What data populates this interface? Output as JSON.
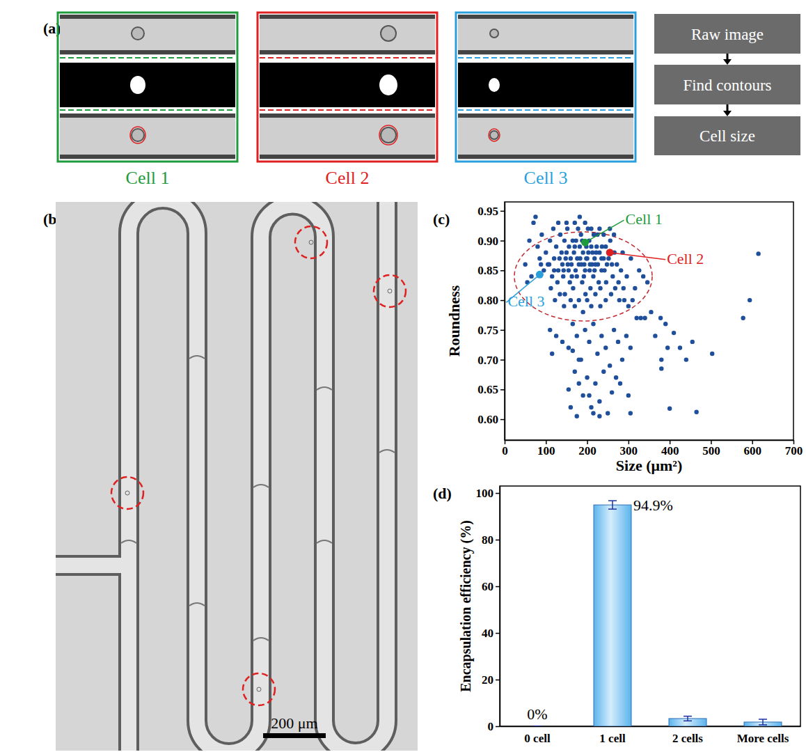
{
  "chart_data": [
    {
      "type": "scatter",
      "x_label": "Size (μm²)",
      "y_label": "Roundness",
      "color": "#1f4e9a",
      "xlim": [
        0,
        700
      ],
      "ylim": [
        0.565,
        0.965
      ],
      "xticks": [
        0,
        100,
        200,
        300,
        400,
        500,
        600,
        700
      ],
      "yticks": [
        {
          "value": 0.6,
          "label": "0.60"
        },
        0.65,
        {
          "value": 0.7,
          "label": "0.70"
        },
        0.75,
        {
          "value": 0.8,
          "label": "0.80"
        },
        0.85,
        {
          "value": 0.9,
          "label": "0.90"
        },
        0.95
      ],
      "x": [
        150,
        160,
        170,
        180,
        190,
        200,
        210,
        220,
        230,
        240,
        155,
        165,
        175,
        185,
        195,
        205,
        215,
        225,
        235,
        245,
        140,
        145,
        158,
        168,
        178,
        188,
        198,
        208,
        218,
        228,
        120,
        125,
        130,
        135,
        142,
        148,
        152,
        162,
        172,
        182,
        192,
        202,
        212,
        222,
        232,
        242,
        252,
        262,
        272,
        282,
        100,
        105,
        110,
        115,
        118,
        128,
        138,
        146,
        156,
        166,
        176,
        186,
        196,
        206,
        216,
        226,
        236,
        246,
        256,
        266,
        60,
        70,
        75,
        80,
        85,
        90,
        95,
        65,
        55,
        50,
        276,
        286,
        296,
        306,
        316,
        326,
        336,
        346,
        290,
        300,
        170,
        182,
        195,
        210,
        230,
        150,
        130,
        240,
        255,
        265,
        160,
        170,
        180,
        190,
        200,
        210,
        220,
        232,
        245,
        258,
        112,
        122,
        134,
        144,
        268,
        278,
        288,
        310,
        320,
        340,
        110,
        115,
        125,
        140,
        155,
        165,
        175,
        185,
        195,
        205,
        215,
        225,
        235,
        245,
        255,
        265,
        275,
        285,
        295,
        305,
        155,
        170,
        180,
        190,
        200,
        210,
        220,
        230,
        240,
        250,
        160,
        175,
        205,
        215,
        230,
        260,
        280,
        300,
        305,
        270,
        330,
        355,
        365,
        378,
        380,
        395,
        410,
        425,
        440,
        455,
        380,
        390,
        400,
        465,
        503,
        578,
        594,
        615,
        180,
        165,
        198,
        203,
        188,
        173,
        213,
        223,
        183,
        193,
        207,
        218,
        235,
        248,
        260,
        163,
        153,
        143,
        133,
        120,
        108,
        88
      ],
      "values": [
        0.88,
        0.87,
        0.89,
        0.86,
        0.88,
        0.87,
        0.89,
        0.86,
        0.88,
        0.87,
        0.85,
        0.9,
        0.84,
        0.91,
        0.85,
        0.9,
        0.84,
        0.91,
        0.85,
        0.89,
        0.86,
        0.9,
        0.83,
        0.88,
        0.92,
        0.83,
        0.89,
        0.82,
        0.87,
        0.83,
        0.87,
        0.89,
        0.85,
        0.91,
        0.84,
        0.87,
        0.92,
        0.86,
        0.85,
        0.89,
        0.84,
        0.92,
        0.86,
        0.88,
        0.82,
        0.85,
        0.87,
        0.84,
        0.86,
        0.85,
        0.88,
        0.86,
        0.9,
        0.84,
        0.92,
        0.83,
        0.88,
        0.81,
        0.89,
        0.82,
        0.87,
        0.86,
        0.81,
        0.85,
        0.91,
        0.86,
        0.89,
        0.83,
        0.9,
        0.88,
        0.9,
        0.93,
        0.94,
        0.89,
        0.87,
        0.91,
        0.85,
        0.84,
        0.83,
        0.86,
        0.83,
        0.88,
        0.84,
        0.87,
        0.82,
        0.85,
        0.84,
        0.83,
        0.8,
        0.79,
        0.93,
        0.94,
        0.93,
        0.92,
        0.92,
        0.93,
        0.93,
        0.91,
        0.92,
        0.91,
        0.8,
        0.79,
        0.8,
        0.78,
        0.8,
        0.79,
        0.81,
        0.79,
        0.8,
        0.81,
        0.82,
        0.8,
        0.81,
        0.79,
        0.82,
        0.8,
        0.82,
        0.8,
        0.77,
        0.77,
        0.75,
        0.71,
        0.74,
        0.73,
        0.72,
        0.76,
        0.74,
        0.7,
        0.75,
        0.73,
        0.76,
        0.71,
        0.74,
        0.72,
        0.69,
        0.75,
        0.73,
        0.7,
        0.74,
        0.72,
        0.65,
        0.68,
        0.66,
        0.64,
        0.67,
        0.62,
        0.66,
        0.63,
        0.68,
        0.61,
        0.62,
        0.605,
        0.64,
        0.61,
        0.605,
        0.645,
        0.66,
        0.64,
        0.61,
        0.67,
        0.77,
        0.78,
        0.74,
        0.77,
        0.7,
        0.72,
        0.745,
        0.72,
        0.7,
        0.73,
        0.685,
        0.76,
        0.618,
        0.612,
        0.71,
        0.77,
        0.8,
        0.878,
        0.7,
        0.715,
        0.87,
        0.88,
        0.9,
        0.9,
        0.88,
        0.89,
        0.87,
        0.86,
        0.86,
        0.85,
        0.87,
        0.86,
        0.86,
        0.84,
        0.86,
        0.85,
        0.87,
        0.85,
        0.86,
        0.86
      ],
      "annotations": [
        {
          "text": "Cell 1",
          "x": 195,
          "y": 0.897,
          "color": "#1e9b3c"
        },
        {
          "text": "Cell 2",
          "x": 255,
          "y": 0.88,
          "color": "#e02020"
        },
        {
          "text": "Cell 3",
          "x": 85,
          "y": 0.843,
          "color": "#2a9fdc"
        }
      ]
    },
    {
      "type": "bar",
      "y_label": "Encapsulation efficiency (%)",
      "categories": [
        "0 cell",
        "1 cell",
        "2 cells",
        "More cells"
      ],
      "values": [
        0,
        94.9,
        3.3,
        1.8
      ],
      "errors": [
        0,
        1.8,
        1.0,
        1.2
      ],
      "value_labels": [
        "0%",
        "94.9%",
        null,
        null
      ],
      "data_labels": true,
      "color": "#5ab4ec",
      "ylim": [
        0,
        103
      ],
      "yticks": [
        0,
        20,
        40,
        60,
        80,
        100
      ]
    }
  ],
  "figure": {
    "panel_labels": [
      "(a)",
      "(b)",
      "(c)",
      "(d)"
    ],
    "cells": [
      {
        "label": "Cell 1",
        "color": "#1e9b3c"
      },
      {
        "label": "Cell 2",
        "color": "#e02020"
      },
      {
        "label": "Cell 3",
        "color": "#2a9fdc"
      }
    ],
    "flow_steps": [
      "Raw image",
      "Find contours",
      "Cell size"
    ],
    "scale_bar": "200 μm"
  }
}
